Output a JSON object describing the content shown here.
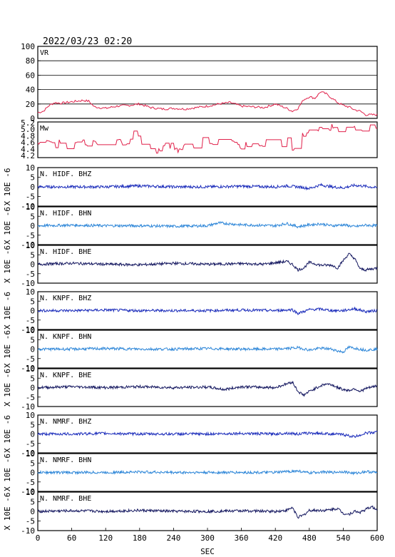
{
  "chart_data": {
    "type": "line",
    "title": "2022/03/23 02:20",
    "xlabel": "SEC",
    "xlim": [
      0,
      600
    ],
    "xticks": [
      "0",
      "60",
      "120",
      "180",
      "240",
      "300",
      "360",
      "420",
      "480",
      "540",
      "600"
    ],
    "panels": [
      {
        "label": "VR",
        "ylim": [
          0,
          100
        ],
        "yticks": [
          "0",
          "20",
          "40",
          "60",
          "80",
          "100"
        ],
        "gridlines": [
          20,
          40,
          60,
          80
        ],
        "color": "#e0204a",
        "series": [
          {
            "x": [
              0,
              10,
              20,
              30,
              40,
              50,
              60,
              70,
              80,
              90,
              100,
              120,
              140,
              160,
              180,
              200,
              220,
              240,
              260,
              280,
              300,
              320,
              340,
              360,
              380,
              400,
              420,
              440,
              450,
              460,
              470,
              480,
              490,
              500,
              510,
              520,
              530,
              540,
              550,
              560,
              570,
              580,
              590,
              600
            ],
            "y": [
              8,
              10,
              18,
              22,
              21,
              22,
              23,
              24,
              25,
              24,
              16,
              14,
              17,
              18,
              20,
              15,
              13,
              14,
              13,
              15,
              17,
              20,
              22,
              17,
              16,
              15,
              20,
              14,
              10,
              14,
              26,
              30,
              28,
              37,
              34,
              28,
              22,
              18,
              16,
              12,
              10,
              5,
              5,
              5
            ]
          }
        ]
      },
      {
        "label": "Mw",
        "ylim": [
          4.1,
          5.2
        ],
        "yticks": [
          "4.2",
          "4.4",
          "4.6",
          "4.8",
          "5.0",
          "5.2"
        ],
        "gridlines": [],
        "color": "#e0204a",
        "series": [
          {
            "x": [
              0,
              10,
              20,
              30,
              40,
              50,
              60,
              70,
              80,
              90,
              100,
              110,
              120,
              130,
              140,
              150,
              160,
              170,
              180,
              190,
              200,
              210,
              220,
              230,
              240,
              250,
              260,
              270,
              280,
              290,
              300,
              310,
              320,
              330,
              340,
              350,
              360,
              370,
              380,
              390,
              400,
              410,
              420,
              430,
              440,
              450,
              460,
              470,
              480,
              490,
              500,
              510,
              520,
              530,
              540,
              550,
              560,
              570,
              580,
              590,
              600
            ],
            "y": [
              4.55,
              4.7,
              4.6,
              4.5,
              4.65,
              4.45,
              4.7,
              4.55,
              4.6,
              4.5,
              4.7,
              4.4,
              4.5,
              4.3,
              4.65,
              4.5,
              4.55,
              4.85,
              4.6,
              4.5,
              4.3,
              4.25,
              4.55,
              4.45,
              4.5,
              4.35,
              4.5,
              4.4,
              4.55,
              4.85,
              4.6,
              4.55,
              4.7,
              4.9,
              4.5,
              4.6,
              4.45,
              4.55,
              4.5,
              4.3,
              4.6,
              4.55,
              4.6,
              4.5,
              4.7,
              4.4,
              4.6,
              4.85,
              5.0,
              4.9,
              5.1,
              5.0,
              5.05,
              4.95,
              5.1,
              4.9,
              5.0,
              4.95,
              5.1,
              5.0,
              4.9
            ]
          }
        ]
      },
      {
        "label": "N. HIDF. BHZ",
        "ylim": [
          -10,
          10
        ],
        "yticks": [
          "-10",
          "-5",
          "0",
          "5",
          "10"
        ],
        "color": "#1c2dbb",
        "series": [
          {
            "x": [
              0,
              60,
              120,
              180,
              240,
              300,
              360,
              420,
              440,
              460,
              480,
              500,
              520,
              540,
              560,
              580,
              600
            ],
            "y": [
              0,
              0,
              0,
              0.5,
              0,
              0,
              0.3,
              0,
              0.5,
              0,
              -0.8,
              1,
              0,
              -0.5,
              0.8,
              0.3,
              -0.5
            ]
          }
        ]
      },
      {
        "label": "N. HIDF. BHN",
        "ylim": [
          -10,
          10
        ],
        "yticks": [
          "-10",
          "-5",
          "0",
          "5",
          "10"
        ],
        "color": "#2d86d8",
        "series": [
          {
            "x": [
              0,
              60,
              120,
              180,
              240,
              300,
              320,
              360,
              420,
              440,
              460,
              480,
              500,
              520,
              540,
              560,
              580,
              600
            ],
            "y": [
              0,
              0.3,
              0,
              0,
              -0.3,
              0,
              1.5,
              0.5,
              0,
              1.2,
              -0.5,
              0.5,
              1,
              0,
              0.5,
              -0.5,
              0.3,
              0
            ]
          }
        ]
      },
      {
        "label": "N. HIDF. BHE",
        "ylim": [
          -10,
          10
        ],
        "yticks": [
          "-10",
          "-5",
          "0",
          "5",
          "10"
        ],
        "color": "#151860",
        "series": [
          {
            "x": [
              0,
              60,
              120,
              180,
              240,
              300,
              360,
              400,
              420,
              440,
              450,
              460,
              470,
              480,
              500,
              520,
              530,
              540,
              550,
              560,
              570,
              580,
              600
            ],
            "y": [
              0,
              0.5,
              0,
              -0.3,
              0.5,
              0,
              0.3,
              0,
              0.8,
              1.5,
              0,
              -3,
              -2,
              1,
              -0.5,
              -0.5,
              -2,
              2,
              5.5,
              3,
              -2.5,
              -3,
              -2
            ]
          }
        ]
      },
      {
        "label": "N. KNPF. BHZ",
        "ylim": [
          -10,
          10
        ],
        "yticks": [
          "-10",
          "-5",
          "0",
          "5",
          "10"
        ],
        "color": "#1c2dbb",
        "series": [
          {
            "x": [
              0,
              60,
              120,
              180,
              240,
              300,
              360,
              420,
              450,
              460,
              480,
              500,
              520,
              540,
              560,
              580,
              600
            ],
            "y": [
              0,
              0,
              0.3,
              0,
              0,
              0,
              0.3,
              0,
              0.5,
              -1.5,
              0.5,
              0.8,
              0,
              0,
              1,
              -0.5,
              0
            ]
          }
        ]
      },
      {
        "label": "N. KNPF. BHN",
        "ylim": [
          -10,
          10
        ],
        "yticks": [
          "-10",
          "-5",
          "0",
          "5",
          "10"
        ],
        "color": "#2d86d8",
        "series": [
          {
            "x": [
              0,
              60,
              120,
              180,
              240,
              300,
              360,
              420,
              450,
              460,
              480,
              500,
              520,
              530,
              540,
              550,
              560,
              580,
              600
            ],
            "y": [
              0,
              0,
              0.3,
              0,
              0,
              0.3,
              0,
              0,
              0.5,
              0.8,
              -0.5,
              0.5,
              0,
              -1,
              -1.5,
              1,
              0.5,
              -0.5,
              0
            ]
          }
        ]
      },
      {
        "label": "N. KNPF. BHE",
        "ylim": [
          -10,
          10
        ],
        "yticks": [
          "-10",
          "-5",
          "0",
          "5",
          "10"
        ],
        "color": "#151860",
        "series": [
          {
            "x": [
              0,
              60,
              120,
              180,
              240,
              300,
              330,
              360,
              420,
              440,
              450,
              460,
              470,
              480,
              500,
              510,
              520,
              530,
              540,
              550,
              560,
              570,
              580,
              600
            ],
            "y": [
              0,
              0.5,
              0,
              0.5,
              0,
              0.3,
              -1,
              0.5,
              0,
              2,
              3,
              -2,
              -4,
              -2,
              1,
              2,
              1.5,
              0,
              -1,
              -1.5,
              -0.5,
              -2,
              -0.5,
              1
            ]
          }
        ]
      },
      {
        "label": "N. NMRF. BHZ",
        "ylim": [
          -10,
          10
        ],
        "yticks": [
          "-10",
          "-5",
          "0",
          "5",
          "10"
        ],
        "color": "#1c2dbb",
        "series": [
          {
            "x": [
              0,
              60,
              120,
              180,
              240,
              300,
              360,
              420,
              440,
              460,
              480,
              500,
              520,
              540,
              550,
              560,
              580,
              600
            ],
            "y": [
              0,
              0,
              0.3,
              0,
              0,
              0,
              0.3,
              0,
              0.5,
              0,
              0.5,
              0.3,
              0,
              -0.3,
              -1,
              -1.5,
              0.5,
              1
            ]
          }
        ]
      },
      {
        "label": "N. NMRF. BHN",
        "ylim": [
          -10,
          10
        ],
        "yticks": [
          "-10",
          "-5",
          "0",
          "5",
          "10"
        ],
        "color": "#2d86d8",
        "series": [
          {
            "x": [
              0,
              60,
              120,
              180,
              240,
              300,
              360,
              420,
              440,
              460,
              480,
              500,
              520,
              540,
              560,
              580,
              600
            ],
            "y": [
              0,
              0,
              0,
              0.3,
              0,
              0,
              0,
              0,
              0.5,
              0.8,
              -0.3,
              0.3,
              0,
              0.5,
              -0.5,
              0.5,
              0
            ]
          }
        ]
      },
      {
        "label": "N. NMRF. BHE",
        "ylim": [
          -10,
          10
        ],
        "yticks": [
          "-10",
          "-5",
          "0",
          "5",
          "10"
        ],
        "color": "#151860",
        "series": [
          {
            "x": [
              0,
              60,
              120,
              180,
              240,
              300,
              360,
              420,
              440,
              450,
              460,
              470,
              480,
              500,
              510,
              520,
              530,
              540,
              550,
              560,
              570,
              580,
              590,
              600
            ],
            "y": [
              0,
              0.3,
              0,
              0.5,
              0,
              0,
              0.3,
              0,
              0.5,
              2,
              -3,
              -2,
              0.5,
              0.5,
              0.5,
              1,
              1.5,
              -1,
              -1.5,
              0,
              -0.5,
              1,
              2.5,
              0.5
            ]
          }
        ]
      }
    ],
    "seismic_axis_label": "X 10E -6"
  }
}
